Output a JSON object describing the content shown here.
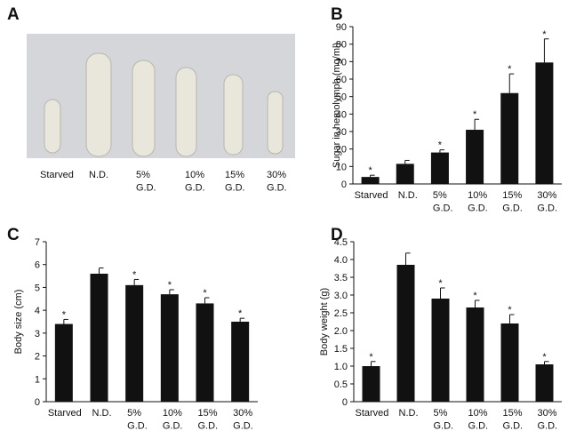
{
  "photo": {
    "panel_label": "A",
    "labels": [
      "Starved",
      "N.D.",
      "5%\nG.D.",
      "10%\nG.D.",
      "15%\nG.D.",
      "30%\nG.D."
    ]
  },
  "chart_data": [
    {
      "type": "bar",
      "panel_label": "B",
      "y_label": "Sugar in hemolymph (mg/ml)",
      "categories": [
        "Starved",
        "N.D.",
        "5%\nG.D.",
        "10%\nG.D.",
        "15%\nG.D.",
        "30%\nG.D."
      ],
      "values": [
        4,
        11.5,
        18,
        31,
        52,
        69.5
      ],
      "errors": [
        1,
        2,
        1.5,
        6,
        11,
        13.5
      ],
      "significance": [
        "*",
        null,
        "*",
        "*",
        "*",
        "*"
      ],
      "ylim": [
        0,
        90
      ],
      "yticks": [
        0,
        10,
        20,
        30,
        40,
        50,
        60,
        70,
        80,
        90
      ],
      "color": "#111111"
    },
    {
      "type": "bar",
      "panel_label": "C",
      "y_label": "Body size (cm)",
      "categories": [
        "Starved",
        "N.D.",
        "5%\nG.D.",
        "10%\nG.D.",
        "15%\nG.D.",
        "30%\nG.D."
      ],
      "values": [
        3.4,
        5.6,
        5.1,
        4.7,
        4.3,
        3.5
      ],
      "errors": [
        0.2,
        0.25,
        0.25,
        0.2,
        0.25,
        0.15
      ],
      "significance": [
        "*",
        null,
        "*",
        "*",
        "*",
        "*"
      ],
      "ylim": [
        0,
        7
      ],
      "yticks": [
        0,
        1,
        2,
        3,
        4,
        5,
        6,
        7
      ],
      "color": "#111111"
    },
    {
      "type": "bar",
      "panel_label": "D",
      "y_label": "Body weight (g)",
      "categories": [
        "Starved",
        "N.D.",
        "5%\nG.D.",
        "10%\nG.D.",
        "15%\nG.D.",
        "30%\nG.D."
      ],
      "values": [
        1.0,
        3.85,
        2.9,
        2.65,
        2.2,
        1.05
      ],
      "errors": [
        0.13,
        0.33,
        0.3,
        0.2,
        0.25,
        0.08
      ],
      "significance": [
        "*",
        null,
        "*",
        "*",
        "*",
        "*"
      ],
      "ylim": [
        0,
        4.5
      ],
      "yticks": [
        0,
        0.5,
        {
          "value": 1,
          "label": "1.0"
        },
        1.5,
        {
          "value": 2,
          "label": "2.0"
        },
        2.5,
        {
          "value": 3,
          "label": "3.0"
        },
        3.5,
        {
          "value": 4,
          "label": "4.0"
        },
        4.5
      ],
      "color": "#111111"
    }
  ]
}
